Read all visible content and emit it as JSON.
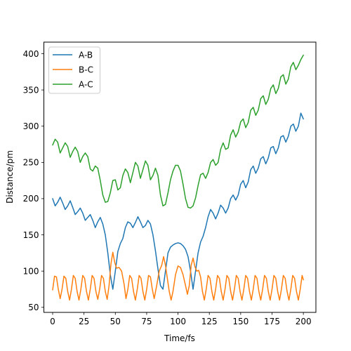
{
  "chart_data": {
    "type": "line",
    "title": "",
    "xlabel": "Time/fs",
    "ylabel": "Distance/pm",
    "xlim": [
      -7,
      210
    ],
    "ylim": [
      43,
      416
    ],
    "xticks": [
      0,
      25,
      50,
      75,
      100,
      125,
      150,
      175,
      200
    ],
    "yticks": [
      50,
      100,
      150,
      200,
      250,
      300,
      350,
      400
    ],
    "grid": false,
    "legend_position": "top-left",
    "series": [
      {
        "name": "A-B",
        "color": "#1f77b4",
        "points": [
          [
            0,
            200
          ],
          [
            2,
            190
          ],
          [
            4,
            195
          ],
          [
            6,
            202
          ],
          [
            8,
            194
          ],
          [
            10,
            185
          ],
          [
            12,
            190
          ],
          [
            14,
            197
          ],
          [
            16,
            188
          ],
          [
            18,
            178
          ],
          [
            20,
            182
          ],
          [
            22,
            187
          ],
          [
            24,
            180
          ],
          [
            26,
            170
          ],
          [
            28,
            174
          ],
          [
            30,
            178
          ],
          [
            32,
            170
          ],
          [
            34,
            160
          ],
          [
            36,
            168
          ],
          [
            38,
            174
          ],
          [
            40,
            165
          ],
          [
            42,
            150
          ],
          [
            44,
            125
          ],
          [
            46,
            95
          ],
          [
            48,
            75
          ],
          [
            50,
            100
          ],
          [
            52,
            127
          ],
          [
            54,
            138
          ],
          [
            56,
            145
          ],
          [
            58,
            160
          ],
          [
            60,
            168
          ],
          [
            62,
            166
          ],
          [
            64,
            160
          ],
          [
            66,
            167
          ],
          [
            68,
            175
          ],
          [
            70,
            168
          ],
          [
            72,
            160
          ],
          [
            74,
            163
          ],
          [
            76,
            170
          ],
          [
            78,
            165
          ],
          [
            80,
            150
          ],
          [
            82,
            128
          ],
          [
            84,
            103
          ],
          [
            86,
            80
          ],
          [
            88,
            75
          ],
          [
            90,
            100
          ],
          [
            92,
            125
          ],
          [
            94,
            133
          ],
          [
            96,
            136
          ],
          [
            98,
            138
          ],
          [
            100,
            139
          ],
          [
            102,
            138
          ],
          [
            104,
            135
          ],
          [
            106,
            130
          ],
          [
            108,
            120
          ],
          [
            110,
            100
          ],
          [
            112,
            75
          ],
          [
            114,
            100
          ],
          [
            116,
            125
          ],
          [
            118,
            140
          ],
          [
            120,
            148
          ],
          [
            122,
            160
          ],
          [
            124,
            175
          ],
          [
            126,
            185
          ],
          [
            128,
            180
          ],
          [
            130,
            172
          ],
          [
            132,
            180
          ],
          [
            134,
            191
          ],
          [
            136,
            187
          ],
          [
            138,
            180
          ],
          [
            140,
            187
          ],
          [
            142,
            200
          ],
          [
            144,
            205
          ],
          [
            146,
            198
          ],
          [
            148,
            205
          ],
          [
            150,
            220
          ],
          [
            152,
            225
          ],
          [
            154,
            215
          ],
          [
            156,
            223
          ],
          [
            158,
            240
          ],
          [
            160,
            245
          ],
          [
            162,
            235
          ],
          [
            164,
            242
          ],
          [
            166,
            255
          ],
          [
            168,
            258
          ],
          [
            170,
            248
          ],
          [
            172,
            256
          ],
          [
            174,
            270
          ],
          [
            176,
            272
          ],
          [
            178,
            262
          ],
          [
            180,
            270
          ],
          [
            182,
            285
          ],
          [
            184,
            287
          ],
          [
            186,
            278
          ],
          [
            188,
            286
          ],
          [
            190,
            300
          ],
          [
            192,
            303
          ],
          [
            194,
            293
          ],
          [
            196,
            300
          ],
          [
            198,
            318
          ],
          [
            200,
            310
          ]
        ]
      },
      {
        "name": "B-C",
        "color": "#ff7f0e",
        "points": [
          [
            0,
            74
          ],
          [
            1.5,
            93
          ],
          [
            3,
            92
          ],
          [
            4.5,
            75
          ],
          [
            6,
            62
          ],
          [
            7.5,
            75
          ],
          [
            9,
            93
          ],
          [
            10.5,
            90
          ],
          [
            12,
            72
          ],
          [
            13.5,
            60
          ],
          [
            15,
            75
          ],
          [
            16.5,
            94
          ],
          [
            18,
            90
          ],
          [
            19.5,
            72
          ],
          [
            21,
            60
          ],
          [
            22.5,
            75
          ],
          [
            24,
            94
          ],
          [
            25.5,
            90
          ],
          [
            27,
            72
          ],
          [
            28.5,
            60
          ],
          [
            30,
            75
          ],
          [
            31.5,
            94
          ],
          [
            33,
            90
          ],
          [
            34.5,
            72
          ],
          [
            36,
            61
          ],
          [
            37.5,
            75
          ],
          [
            39,
            94
          ],
          [
            40.5,
            90
          ],
          [
            42,
            72
          ],
          [
            43.5,
            61
          ],
          [
            45,
            80
          ],
          [
            46.5,
            110
          ],
          [
            48,
            126
          ],
          [
            49.5,
            112
          ],
          [
            51,
            104
          ],
          [
            53,
            105
          ],
          [
            55,
            100
          ],
          [
            57,
            82
          ],
          [
            58.5,
            62
          ],
          [
            60,
            75
          ],
          [
            61.5,
            94
          ],
          [
            63,
            90
          ],
          [
            64.5,
            72
          ],
          [
            66,
            60
          ],
          [
            67.5,
            75
          ],
          [
            69,
            94
          ],
          [
            70.5,
            90
          ],
          [
            72,
            72
          ],
          [
            73.5,
            60
          ],
          [
            75,
            75
          ],
          [
            76.5,
            94
          ],
          [
            78,
            92
          ],
          [
            79.5,
            75
          ],
          [
            81,
            62
          ],
          [
            83,
            80
          ],
          [
            85,
            100
          ],
          [
            87,
            108
          ],
          [
            88.5,
            120
          ],
          [
            90,
            108
          ],
          [
            91.5,
            90
          ],
          [
            93,
            72
          ],
          [
            94.5,
            60
          ],
          [
            96,
            72
          ],
          [
            98,
            95
          ],
          [
            100,
            107
          ],
          [
            102,
            105
          ],
          [
            104,
            95
          ],
          [
            106,
            80
          ],
          [
            107.5,
            68
          ],
          [
            109,
            80
          ],
          [
            110.5,
            108
          ],
          [
            112,
            118
          ],
          [
            113.5,
            106
          ],
          [
            115,
            100
          ],
          [
            116.5,
            101
          ],
          [
            118,
            92
          ],
          [
            119.5,
            72
          ],
          [
            121,
            60
          ],
          [
            122.5,
            75
          ],
          [
            124,
            94
          ],
          [
            125.5,
            90
          ],
          [
            127,
            72
          ],
          [
            128.5,
            60
          ],
          [
            130,
            75
          ],
          [
            131.5,
            94
          ],
          [
            133,
            90
          ],
          [
            134.5,
            72
          ],
          [
            136,
            60
          ],
          [
            137.5,
            75
          ],
          [
            139,
            94
          ],
          [
            140.5,
            90
          ],
          [
            142,
            72
          ],
          [
            143.5,
            60
          ],
          [
            145,
            75
          ],
          [
            146.5,
            94
          ],
          [
            148,
            90
          ],
          [
            149.5,
            72
          ],
          [
            151,
            60
          ],
          [
            152.5,
            75
          ],
          [
            154,
            94
          ],
          [
            155.5,
            90
          ],
          [
            157,
            72
          ],
          [
            158.5,
            60
          ],
          [
            160,
            75
          ],
          [
            161.5,
            94
          ],
          [
            163,
            90
          ],
          [
            164.5,
            72
          ],
          [
            166,
            60
          ],
          [
            167.5,
            75
          ],
          [
            169,
            94
          ],
          [
            170.5,
            90
          ],
          [
            172,
            72
          ],
          [
            173.5,
            60
          ],
          [
            175,
            75
          ],
          [
            176.5,
            94
          ],
          [
            178,
            90
          ],
          [
            179.5,
            72
          ],
          [
            181,
            60
          ],
          [
            182.5,
            75
          ],
          [
            184,
            94
          ],
          [
            185.5,
            90
          ],
          [
            187,
            72
          ],
          [
            188.5,
            60
          ],
          [
            190,
            75
          ],
          [
            191.5,
            94
          ],
          [
            193,
            90
          ],
          [
            194.5,
            72
          ],
          [
            196,
            60
          ],
          [
            197.5,
            75
          ],
          [
            199,
            94
          ],
          [
            200,
            88
          ]
        ]
      },
      {
        "name": "A-C",
        "color": "#2ca02c",
        "points": [
          [
            0,
            274
          ],
          [
            2,
            282
          ],
          [
            4,
            278
          ],
          [
            6,
            263
          ],
          [
            8,
            270
          ],
          [
            10,
            277
          ],
          [
            12,
            272
          ],
          [
            14,
            257
          ],
          [
            16,
            265
          ],
          [
            18,
            271
          ],
          [
            20,
            265
          ],
          [
            22,
            250
          ],
          [
            24,
            258
          ],
          [
            26,
            263
          ],
          [
            28,
            258
          ],
          [
            30,
            241
          ],
          [
            32,
            238
          ],
          [
            34,
            245
          ],
          [
            36,
            242
          ],
          [
            38,
            225
          ],
          [
            40,
            205
          ],
          [
            42,
            195
          ],
          [
            44,
            196
          ],
          [
            46,
            208
          ],
          [
            48,
            225
          ],
          [
            50,
            226
          ],
          [
            52,
            212
          ],
          [
            54,
            215
          ],
          [
            56,
            232
          ],
          [
            58,
            241
          ],
          [
            60,
            236
          ],
          [
            62,
            222
          ],
          [
            64,
            236
          ],
          [
            66,
            250
          ],
          [
            68,
            245
          ],
          [
            70,
            228
          ],
          [
            72,
            240
          ],
          [
            74,
            252
          ],
          [
            76,
            246
          ],
          [
            78,
            226
          ],
          [
            80,
            232
          ],
          [
            82,
            242
          ],
          [
            84,
            232
          ],
          [
            86,
            205
          ],
          [
            88,
            190
          ],
          [
            90,
            192
          ],
          [
            92,
            208
          ],
          [
            94,
            226
          ],
          [
            96,
            238
          ],
          [
            98,
            246
          ],
          [
            100,
            246
          ],
          [
            102,
            238
          ],
          [
            104,
            220
          ],
          [
            106,
            200
          ],
          [
            108,
            188
          ],
          [
            110,
            187
          ],
          [
            112,
            190
          ],
          [
            114,
            201
          ],
          [
            116,
            218
          ],
          [
            118,
            233
          ],
          [
            120,
            235
          ],
          [
            122,
            228
          ],
          [
            124,
            236
          ],
          [
            126,
            250
          ],
          [
            128,
            254
          ],
          [
            130,
            246
          ],
          [
            132,
            250
          ],
          [
            134,
            268
          ],
          [
            136,
            277
          ],
          [
            138,
            268
          ],
          [
            140,
            270
          ],
          [
            142,
            288
          ],
          [
            144,
            295
          ],
          [
            146,
            285
          ],
          [
            148,
            292
          ],
          [
            150,
            306
          ],
          [
            152,
            310
          ],
          [
            154,
            298
          ],
          [
            156,
            305
          ],
          [
            158,
            322
          ],
          [
            160,
            326
          ],
          [
            162,
            315
          ],
          [
            164,
            322
          ],
          [
            166,
            338
          ],
          [
            168,
            342
          ],
          [
            170,
            330
          ],
          [
            172,
            337
          ],
          [
            174,
            352
          ],
          [
            176,
            357
          ],
          [
            178,
            345
          ],
          [
            180,
            352
          ],
          [
            182,
            368
          ],
          [
            184,
            371
          ],
          [
            186,
            358
          ],
          [
            188,
            365
          ],
          [
            190,
            382
          ],
          [
            192,
            388
          ],
          [
            194,
            378
          ],
          [
            196,
            384
          ],
          [
            198,
            392
          ],
          [
            200,
            398
          ]
        ]
      }
    ]
  }
}
